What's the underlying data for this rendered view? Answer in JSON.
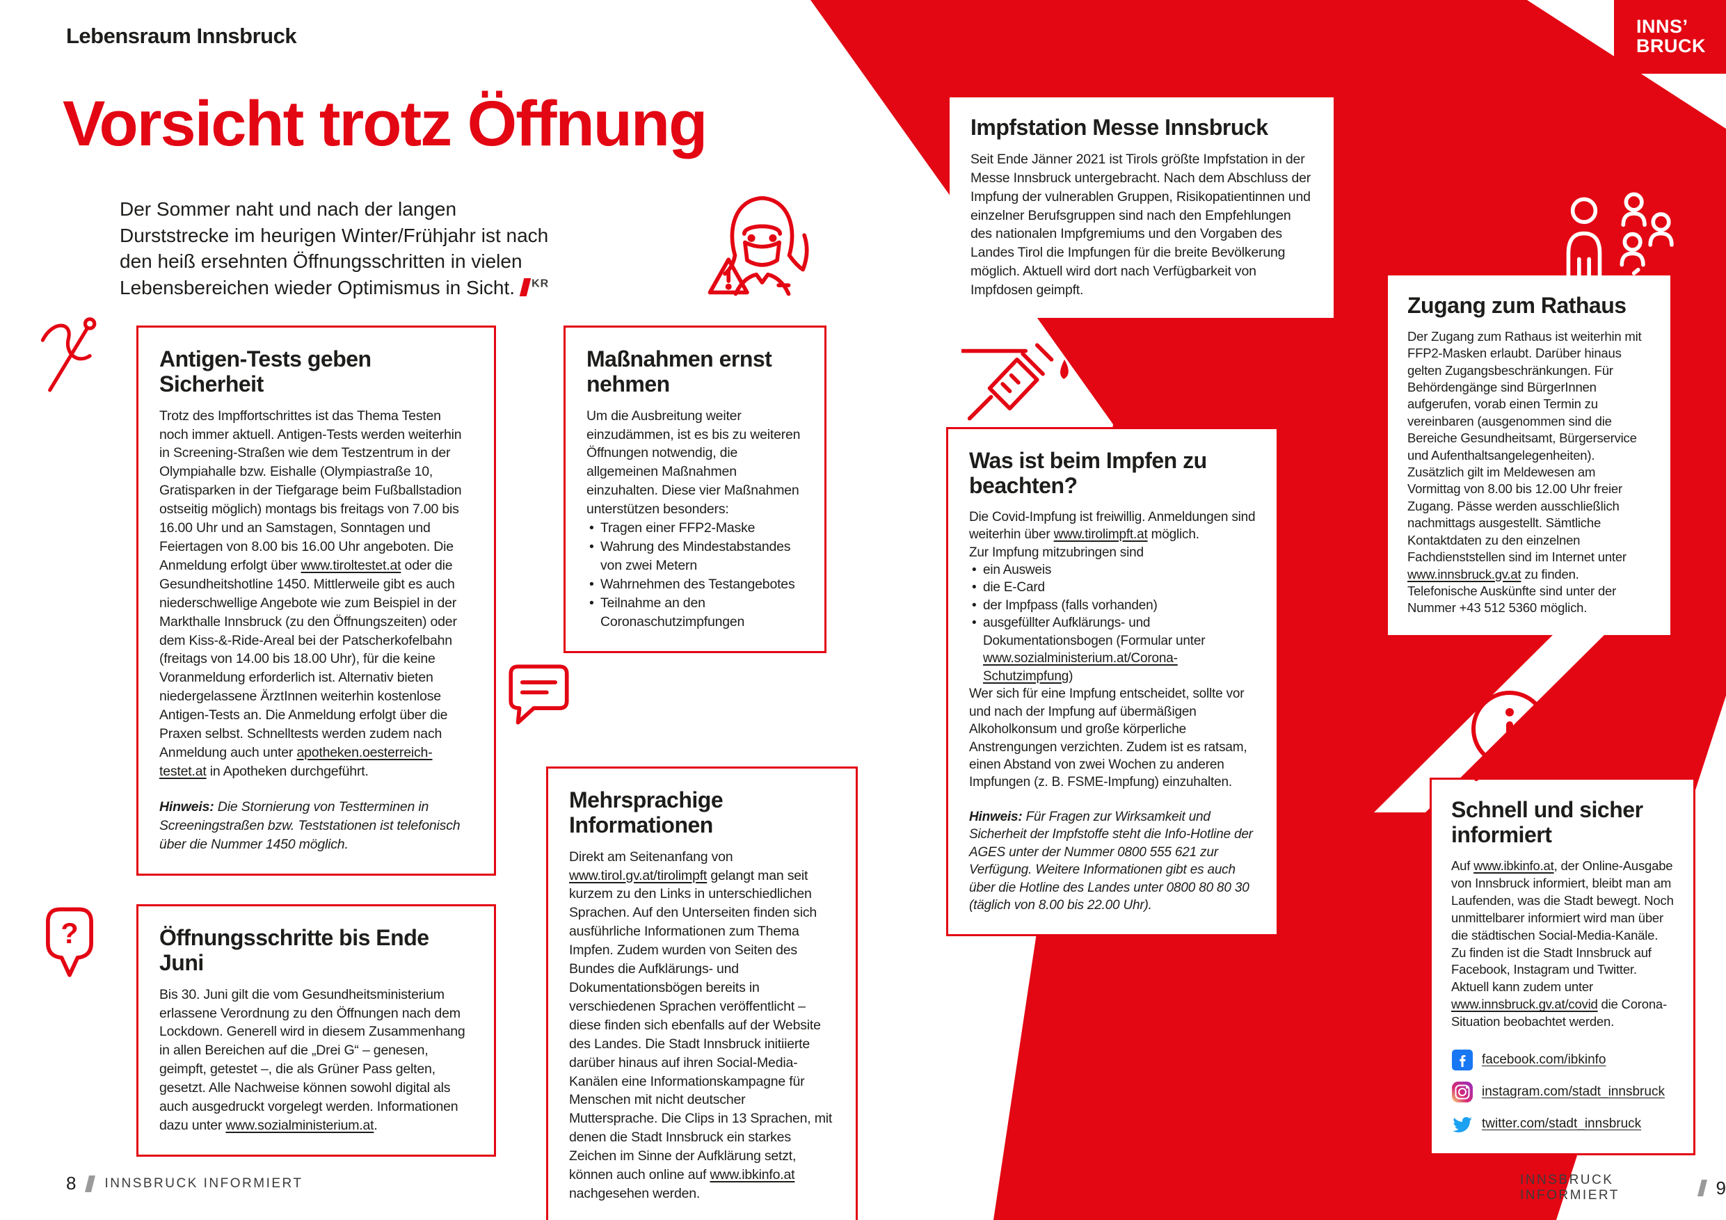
{
  "page": {
    "eyebrow": "Lebensraum Innsbruck",
    "title": "Vorsicht trotz Öffnung",
    "intro": "Der Sommer naht und nach der langen Durststrecke im heurigen Winter/Frühjahr ist nach den heiß ersehnten Öffnungsschritten in vielen Lebensbereichen wieder Optimismus in Sicht.",
    "intro_initials": "KR",
    "logo_line1": "INNS’",
    "logo_line2": "BRUCK",
    "footer_magazine": "INNSBRUCK INFORMIERT",
    "footer_left_page": "8",
    "footer_right_page": "9"
  },
  "colors": {
    "accent_red": "#e30613",
    "text": "#1d1d1b",
    "facebook_blue": "#1877f2",
    "twitter_blue": "#1da1f2",
    "instagram_pink": "#d62976"
  },
  "icons": [
    "swab-icon",
    "masked-woman-icon",
    "speech-bubble-icon",
    "question-pin-icon",
    "syringe-icon",
    "people-distance-icon",
    "info-bubble-icon",
    "facebook-icon",
    "instagram-icon",
    "twitter-icon"
  ],
  "boxes": {
    "antigen": {
      "title": "Antigen-Tests geben Sicherheit",
      "body": "Trotz des Impffortschrittes ist das Thema Testen noch immer aktuell. Antigen-Tests werden weiterhin in Screening-Straßen wie dem Testzentrum in der Olympiahalle bzw. Eishalle (Olympiastraße 10, Gratisparken in der Tiefgarage beim Fußballstadion ostseitig möglich) montags bis freitags von 7.00 bis 16.00 Uhr und an Samstagen, Sonntagen und Feiertagen von 8.00 bis 16.00 Uhr angeboten. Die Anmeldung erfolgt über __www.tiroltestet.at__ oder die Gesundheitshotline 1450. Mittlerweile gibt es auch niederschwellige Angebote wie zum Beispiel in der Markthalle Innsbruck (zu den Öffnungszeiten) oder dem Kiss-&-Ride-Areal bei der Patscherkofelbahn (freitags von 14.00 bis 18.00 Uhr), für die keine Voranmeldung erforderlich ist. Alternativ bieten niedergelassene ÄrztInnen weiterhin kostenlose Antigen-Tests an. Die Anmeldung erfolgt über die Praxen selbst. Schnelltests werden zudem nach Anmeldung auch unter __apotheken.oesterreich-testet.at__ in Apotheken durchgeführt.",
      "hint": "**Hinweis:** Die Stornierung von Testterminen in Screeningstraßen bzw. Teststationen ist telefonisch über die Nummer 1450 möglich."
    },
    "massnahmen": {
      "title": "Maßnahmen ernst nehmen",
      "body": "Um die Ausbreitung weiter einzudämmen, ist es bis zu weiteren Öffnungen notwendig, die allgemeinen Maßnahmen einzuhalten. Diese vier Maßnahmen unterstützen besonders:",
      "bullets": [
        "Tragen einer FFP2-Maske",
        "Wahrung des Mindestabstandes von zwei Metern",
        "Wahrnehmen des Testangebotes",
        "Teilnahme an den Coronaschutzimpfungen"
      ]
    },
    "mehrsprachige": {
      "title": "Mehrsprachige Informationen",
      "body": "Direkt am Seitenanfang von __www.tirol.gv.at/tirolimpft__ gelangt man seit kurzem zu den Links in unterschiedlichen Sprachen. Auf den Unterseiten finden sich ausführliche Informationen zum Thema Impfen. Zudem wurden von Seiten des Bundes die Aufklärungs- und Dokumentationsbögen bereits in verschiedenen Sprachen veröffentlicht – diese finden sich ebenfalls auf der Website des Landes. Die Stadt Innsbruck initiierte darüber hinaus auf ihren Social-Media-Kanälen eine Informationskampagne für Menschen mit nicht deutscher Muttersprache. Die Clips in 13 Sprachen, mit denen die Stadt Innsbruck ein starkes Zeichen im Sinne der Aufklärung setzt, können auch online auf __www.ibkinfo.at__ nachgesehen werden."
    },
    "oeffnung": {
      "title": "Öffnungsschritte bis Ende Juni",
      "body": "Bis 30. Juni gilt die vom Gesundheitsministerium erlassene Verordnung zu den Öffnungen nach dem Lockdown. Generell wird in diesem Zusammenhang in allen Bereichen auf die „Drei G“ – genesen, geimpft, getestet –, die als Grüner Pass gelten, gesetzt. Alle Nachweise können sowohl digital als auch ausgedruckt vorgelegt werden. Informationen dazu unter __www.sozialministerium.at__."
    },
    "impfstation": {
      "title": "Impfstation Messe Innsbruck",
      "body": "Seit Ende Jänner 2021 ist Tirols größte Impfstation in der Messe Innsbruck untergebracht. Nach dem Abschluss der Impfung der vulnerablen Gruppen, Risikopatientinnen und einzelner Berufsgruppen sind nach den Empfehlungen des nationalen Impfgremiums und den Vorgaben des Landes Tirol die Impfungen für die breite Bevölkerung möglich. Aktuell wird dort nach Verfügbarkeit von Impfdosen geimpft."
    },
    "impfen": {
      "title": "Was ist beim Impfen zu beachten?",
      "body1": "Die Covid-Impfung ist freiwillig. Anmeldungen sind weiterhin über __www.tirolimpft.at__ möglich.",
      "body2": "Zur Impfung mitzubringen sind",
      "bullets": [
        "ein Ausweis",
        "die E-Card",
        "der Impfpass (falls vorhanden)",
        "ausgefüllter Aufklärungs- und Dokumentationsbogen (Formular unter __www.sozialministerium.at/Corona-Schutzimpfung__)"
      ],
      "body3": "Wer sich für eine Impfung entscheidet, sollte vor und nach der Impfung auf übermäßigen Alkoholkonsum und große körperliche Anstrengungen verzichten. Zudem ist es ratsam, einen Abstand von zwei Wochen zu anderen Impfungen (z. B. FSME-Impfung) einzuhalten.",
      "hint": "**Hinweis:** Für Fragen zur Wirksamkeit und Sicherheit der Impfstoffe steht die Info-Hotline der AGES unter der Nummer 0800 555 621 zur Verfügung. Weitere Informationen gibt es auch über die Hotline des Landes unter 0800 80 80 30 (täglich von 8.00 bis 22.00 Uhr)."
    },
    "rathaus": {
      "title": "Zugang zum Rathaus",
      "body": "Der Zugang zum Rathaus ist weiterhin mit FFP2-Masken erlaubt. Darüber hinaus gelten Zugangsbeschränkungen. Für Behördengänge sind BürgerInnen aufgerufen, vorab einen Termin zu vereinbaren (ausgenommen sind die Bereiche Gesundheitsamt, Bürgerservice und Aufenthaltsangelegenheiten). Zusätzlich gilt im Meldewesen am Vormittag von 8.00 bis 12.00 Uhr freier Zugang. Pässe werden ausschließlich nachmittags ausgestellt. Sämtliche Kontaktdaten zu den einzelnen Fachdienststellen sind im Internet unter __www.innsbruck.gv.at__ zu finden. Telefonische Auskünfte sind unter der Nummer +43 512 5360 möglich."
    },
    "schnell": {
      "title": "Schnell und sicher informiert",
      "body": "Auf __www.ibkinfo.at__, der Online-Ausgabe von Innsbruck informiert, bleibt man am Laufenden, was die Stadt bewegt. Noch unmittelbarer informiert wird man über die städtischen Social-Media-Kanäle. Zu finden ist die Stadt Innsbruck auf Facebook, Instagram und Twitter. Aktuell kann zudem unter __www.innsbruck.gv.at/covid__ die Corona-Situation beobachtet werden.",
      "social": [
        {
          "icon": "facebook-icon",
          "label": "facebook.com/ibkinfo"
        },
        {
          "icon": "instagram-icon",
          "label": "instagram.com/stadt_innsbruck"
        },
        {
          "icon": "twitter-icon",
          "label": "twitter.com/stadt_innsbruck"
        }
      ]
    }
  }
}
